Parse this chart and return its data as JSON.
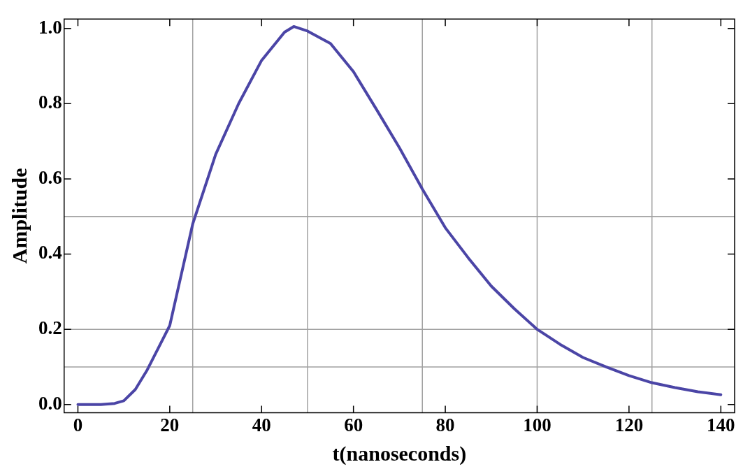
{
  "chart_data": {
    "type": "line",
    "xlabel": "t(nanoseconds)",
    "ylabel": "Amplitude",
    "x": [
      0,
      5,
      8,
      10,
      12.5,
      15,
      17.5,
      20,
      25,
      30,
      35,
      40,
      45,
      47,
      50,
      55,
      60,
      65,
      70,
      75,
      80,
      85,
      90,
      95,
      100,
      105,
      110,
      115,
      120,
      125,
      130,
      135,
      140
    ],
    "series": [
      {
        "color": "#4b45a6",
        "values": [
          0,
          0,
          0.003,
          0.01,
          0.04,
          0.09,
          0.15,
          0.21,
          0.48,
          0.665,
          0.8,
          0.915,
          0.99,
          1.005,
          0.993,
          0.96,
          0.885,
          0.785,
          0.683,
          0.573,
          0.47,
          0.39,
          0.315,
          0.255,
          0.2,
          0.16,
          0.125,
          0.1,
          0.077,
          0.058,
          0.045,
          0.034,
          0.026
        ]
      }
    ],
    "xlim": [
      -3,
      143
    ],
    "ylim": [
      -0.022,
      1.025
    ],
    "xticks": [
      0,
      20,
      40,
      60,
      80,
      100,
      120,
      140
    ],
    "yticks": [
      {
        "value": 0,
        "label": "0.0"
      },
      {
        "value": 0.2,
        "label": "0.2"
      },
      {
        "value": 0.4,
        "label": "0.4"
      },
      {
        "value": 0.6,
        "label": "0.6"
      },
      {
        "value": 0.8,
        "label": "0.8"
      },
      {
        "value": 1,
        "label": "1.0"
      }
    ],
    "ref_lines": [
      {
        "axis": "x",
        "value": 25,
        "color": "#a0a0a0"
      },
      {
        "axis": "x",
        "value": 50,
        "color": "#a0a0a0"
      },
      {
        "axis": "x",
        "value": 75,
        "color": "#a0a0a0"
      },
      {
        "axis": "x",
        "value": 100,
        "color": "#a0a0a0"
      },
      {
        "axis": "x",
        "value": 125,
        "color": "#a0a0a0"
      },
      {
        "axis": "y",
        "value": 0.1,
        "color": "#a0a0a0"
      },
      {
        "axis": "y",
        "value": 0.2,
        "color": "#a0a0a0"
      },
      {
        "axis": "y",
        "value": 0.5,
        "color": "#a0a0a0"
      }
    ],
    "grid": false,
    "legend": false,
    "marker": "none",
    "line_style": "solid"
  }
}
